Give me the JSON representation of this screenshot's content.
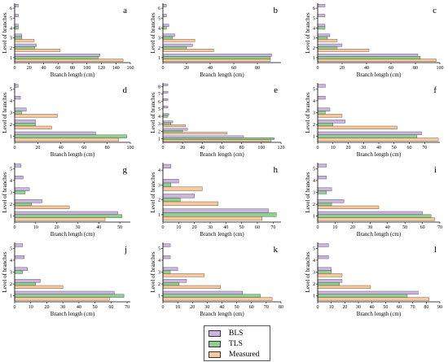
{
  "colors": {
    "BLS": "#c9b5df",
    "TLS": "#8fd08f",
    "Measured": "#f9c99a",
    "edge": "#444444"
  },
  "legend": {
    "items": [
      {
        "key": "BLS",
        "label": "BLS"
      },
      {
        "key": "TLS",
        "label": "TLS"
      },
      {
        "key": "Measured",
        "label": "Measured"
      }
    ]
  },
  "chart_data": [
    {
      "type": "bar",
      "orientation": "horizontal",
      "panel": "a",
      "ylabel": "Level of branches",
      "xlabel": "Branch length (cm)",
      "categories": [
        "1",
        "2",
        "3",
        "4",
        "5",
        "6"
      ],
      "xlim": [
        0,
        160
      ],
      "xticks": [
        0,
        20,
        40,
        60,
        80,
        100,
        120,
        140,
        160
      ],
      "series": [
        {
          "name": "BLS",
          "values": [
            118,
            30,
            10,
            5,
            5,
            5
          ]
        },
        {
          "name": "TLS",
          "values": [
            116,
            28,
            10,
            5,
            0,
            0
          ]
        },
        {
          "name": "Measured",
          "values": [
            150,
            63,
            27,
            0,
            0,
            0
          ]
        }
      ]
    },
    {
      "type": "bar",
      "orientation": "horizontal",
      "panel": "b",
      "ylabel": "Level of branches",
      "xlabel": "Branch length (cm)",
      "categories": [
        "1",
        "2",
        "3",
        "4",
        "5",
        "6"
      ],
      "xlim": [
        0,
        100
      ],
      "xticks": [
        0,
        20,
        40,
        60,
        80
      ],
      "series": [
        {
          "name": "BLS",
          "values": [
            92,
            25,
            10,
            5,
            3,
            3
          ]
        },
        {
          "name": "TLS",
          "values": [
            91,
            20,
            8,
            3,
            0,
            0
          ]
        },
        {
          "name": "Measured",
          "values": [
            91,
            43,
            27,
            0,
            0,
            0
          ]
        }
      ]
    },
    {
      "type": "bar",
      "orientation": "horizontal",
      "panel": "c",
      "ylabel": "Level of branches",
      "xlabel": "Branch length (cm)",
      "categories": [
        "1",
        "2",
        "3",
        "4",
        "5",
        "6"
      ],
      "xlim": [
        0,
        100
      ],
      "xticks": [
        0,
        20,
        40,
        60,
        80,
        100
      ],
      "series": [
        {
          "name": "BLS",
          "values": [
            82,
            20,
            10,
            6,
            6,
            6
          ]
        },
        {
          "name": "TLS",
          "values": [
            84,
            16,
            8,
            6,
            0,
            0
          ]
        },
        {
          "name": "Measured",
          "values": [
            97,
            42,
            16,
            0,
            0,
            0
          ]
        }
      ]
    },
    {
      "type": "bar",
      "orientation": "horizontal",
      "panel": "d",
      "ylabel": "Level of branches",
      "xlabel": "Branch length (cm)",
      "categories": [
        "1",
        "2",
        "3",
        "4",
        "5"
      ],
      "xlim": [
        0,
        100
      ],
      "xticks": [
        0,
        20,
        40,
        60,
        80,
        100
      ],
      "series": [
        {
          "name": "BLS",
          "values": [
            70,
            18,
            10,
            5,
            3
          ]
        },
        {
          "name": "TLS",
          "values": [
            97,
            18,
            6,
            0,
            0
          ]
        },
        {
          "name": "Measured",
          "values": [
            90,
            32,
            37,
            0,
            0
          ]
        }
      ]
    },
    {
      "type": "bar",
      "orientation": "horizontal",
      "panel": "e",
      "ylabel": "Level of branches",
      "xlabel": "Branch length (cm)",
      "categories": [
        "1",
        "2",
        "3",
        "4",
        "5",
        "6",
        "7",
        "8"
      ],
      "xlim": [
        0,
        120
      ],
      "xticks": [
        0,
        20,
        40,
        60,
        80,
        100,
        120
      ],
      "series": [
        {
          "name": "BLS",
          "values": [
            82,
            25,
            10,
            6,
            5,
            5,
            5,
            5
          ]
        },
        {
          "name": "TLS",
          "values": [
            113,
            20,
            8,
            5,
            0,
            0,
            0,
            0
          ]
        },
        {
          "name": "Measured",
          "values": [
            110,
            65,
            23,
            0,
            0,
            0,
            0,
            0
          ]
        }
      ]
    },
    {
      "type": "bar",
      "orientation": "horizontal",
      "panel": "f",
      "ylabel": "Level of branches",
      "xlabel": "Branch length (cm)",
      "categories": [
        "1",
        "2",
        "3",
        "4",
        "5"
      ],
      "xlim": [
        0,
        80
      ],
      "xticks": [
        0,
        10,
        20,
        30,
        40,
        50,
        60,
        70
      ],
      "series": [
        {
          "name": "BLS",
          "values": [
            68,
            18,
            8,
            5,
            5
          ]
        },
        {
          "name": "TLS",
          "values": [
            65,
            10,
            5,
            0,
            0
          ]
        },
        {
          "name": "Measured",
          "values": [
            79,
            52,
            16,
            0,
            0
          ]
        }
      ]
    },
    {
      "type": "bar",
      "orientation": "horizontal",
      "panel": "g",
      "ylabel": "Level of branches",
      "xlabel": "Branch length (cm)",
      "categories": [
        "1",
        "2",
        "3",
        "4",
        "5"
      ],
      "xlim": [
        0,
        55
      ],
      "xticks": [
        0,
        10,
        20,
        30,
        40,
        50
      ],
      "series": [
        {
          "name": "BLS",
          "values": [
            49,
            13,
            7,
            4,
            3
          ]
        },
        {
          "name": "TLS",
          "values": [
            51,
            8,
            5,
            0,
            0
          ]
        },
        {
          "name": "Measured",
          "values": [
            43,
            26,
            0,
            0,
            0
          ]
        }
      ]
    },
    {
      "type": "bar",
      "orientation": "horizontal",
      "panel": "h",
      "ylabel": "Level of branches",
      "xlabel": "Branch length (cm)",
      "categories": [
        "1",
        "2",
        "3",
        "4"
      ],
      "xlim": [
        0,
        75
      ],
      "xticks": [
        0,
        10,
        20,
        30,
        40,
        50,
        60,
        70
      ],
      "series": [
        {
          "name": "BLS",
          "values": [
            67,
            20,
            10,
            5
          ]
        },
        {
          "name": "TLS",
          "values": [
            72,
            11,
            5,
            0
          ]
        },
        {
          "name": "Measured",
          "values": [
            63,
            35,
            25,
            0
          ]
        }
      ]
    },
    {
      "type": "bar",
      "orientation": "horizontal",
      "panel": "i",
      "ylabel": "Level of branches",
      "xlabel": "Branch length (cm)",
      "categories": [
        "1",
        "2",
        "3",
        "4",
        "5"
      ],
      "xlim": [
        0,
        70
      ],
      "xticks": [
        0,
        10,
        20,
        30,
        40,
        50,
        60,
        70
      ],
      "series": [
        {
          "name": "BLS",
          "values": [
            60,
            15,
            8,
            5,
            5
          ]
        },
        {
          "name": "TLS",
          "values": [
            65,
            8,
            5,
            0,
            0
          ]
        },
        {
          "name": "Measured",
          "values": [
            67,
            35,
            0,
            0,
            0
          ]
        }
      ]
    },
    {
      "type": "bar",
      "orientation": "horizontal",
      "panel": "j",
      "ylabel": "Level of branches",
      "xlabel": "Branch length (cm)",
      "categories": [
        "1",
        "2",
        "3",
        "4",
        "5"
      ],
      "xlim": [
        0,
        72
      ],
      "xticks": [
        0,
        10,
        20,
        30,
        40,
        50,
        60,
        70
      ],
      "series": [
        {
          "name": "BLS",
          "values": [
            62,
            16,
            8,
            6,
            5
          ]
        },
        {
          "name": "TLS",
          "values": [
            68,
            13,
            5,
            0,
            0
          ]
        },
        {
          "name": "Measured",
          "values": [
            59,
            30,
            0,
            0,
            0
          ]
        }
      ]
    },
    {
      "type": "bar",
      "orientation": "horizontal",
      "panel": "k",
      "ylabel": "Level of branches",
      "xlabel": "Branch length (cm)",
      "categories": [
        "1",
        "2",
        "3",
        "4",
        "5"
      ],
      "xlim": [
        0,
        80
      ],
      "xticks": [
        0,
        10,
        20,
        30,
        40,
        50,
        60,
        70,
        80
      ],
      "series": [
        {
          "name": "BLS",
          "values": [
            54,
            16,
            10,
            5,
            5
          ]
        },
        {
          "name": "TLS",
          "values": [
            66,
            11,
            5,
            0,
            0
          ]
        },
        {
          "name": "Measured",
          "values": [
            74,
            39,
            28,
            0,
            0
          ]
        }
      ]
    },
    {
      "type": "bar",
      "orientation": "horizontal",
      "panel": "l",
      "ylabel": "Level of branches",
      "xlabel": "Branch length (cm)",
      "categories": [
        "1",
        "2",
        "3",
        "4",
        "5"
      ],
      "xlim": [
        0,
        90
      ],
      "xticks": [
        0,
        10,
        20,
        30,
        40,
        50,
        60,
        70,
        80,
        90
      ],
      "series": [
        {
          "name": "BLS",
          "values": [
            74,
            18,
            10,
            8,
            8
          ]
        },
        {
          "name": "TLS",
          "values": [
            66,
            16,
            10,
            0,
            0
          ]
        },
        {
          "name": "Measured",
          "values": [
            82,
            39,
            18,
            0,
            0
          ]
        }
      ]
    }
  ]
}
